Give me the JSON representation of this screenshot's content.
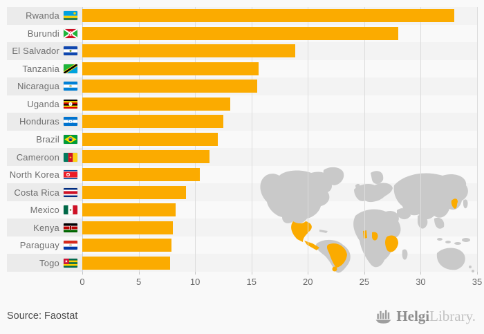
{
  "chart_data": {
    "type": "bar",
    "orientation": "horizontal",
    "title": "",
    "xlabel": "",
    "ylabel": "",
    "xlim": [
      0,
      35
    ],
    "x_ticks": [
      0,
      5,
      10,
      15,
      20,
      25,
      30,
      35
    ],
    "grid": true,
    "bar_color": "#fbab00",
    "categories": [
      "Rwanda",
      "Burundi",
      "El Salvador",
      "Tanzania",
      "Nicaragua",
      "Uganda",
      "Honduras",
      "Brazil",
      "Cameroon",
      "North Korea",
      "Costa Rica",
      "Mexico",
      "Kenya",
      "Paraguay",
      "Togo"
    ],
    "values": [
      33,
      28,
      18.9,
      15.6,
      15.5,
      13.1,
      12.5,
      12,
      11.3,
      10.4,
      9.2,
      8.3,
      8,
      7.9,
      7.8
    ],
    "flags": [
      "rwanda-flag-icon",
      "burundi-flag-icon",
      "el-salvador-flag-icon",
      "tanzania-flag-icon",
      "nicaragua-flag-icon",
      "uganda-flag-icon",
      "honduras-flag-icon",
      "brazil-flag-icon",
      "cameroon-flag-icon",
      "north-korea-flag-icon",
      "costa-rica-flag-icon",
      "mexico-flag-icon",
      "kenya-flag-icon",
      "paraguay-flag-icon",
      "togo-flag-icon"
    ]
  },
  "map": {
    "icon": "world-map",
    "land_color": "#c9c9c9",
    "highlight_color": "#fbab00",
    "highlighted_countries": [
      "Mexico",
      "El Salvador",
      "Honduras",
      "Nicaragua",
      "Costa Rica",
      "Brazil",
      "Paraguay",
      "Togo",
      "Cameroon",
      "Rwanda",
      "Burundi",
      "Uganda",
      "Kenya",
      "Tanzania",
      "North Korea"
    ]
  },
  "footer": {
    "source_label": "Source: Faostat",
    "brand": {
      "glyph": "helgi-ship-icon",
      "name_bold": "Helgi",
      "name_light": "Library."
    }
  },
  "colors": {
    "row_stripe": "#ebebeb",
    "plot_stripe": "#f3f3f3",
    "gridline": "#dcdcdc",
    "axis_line": "#c9d2e2",
    "label_text": "#6e6e6e",
    "tick_text": "#666666",
    "background": "#f9f9f9"
  }
}
